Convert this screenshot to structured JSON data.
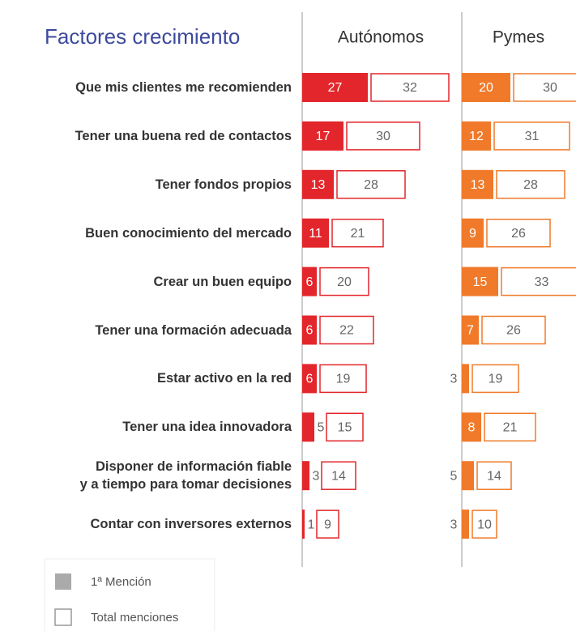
{
  "chart_data": {
    "type": "bar",
    "title": "Factores crecimiento",
    "categories": [
      "Que mis clientes me recomienden",
      "Tener una buena red de contactos",
      "Tener fondos propios",
      "Buen conocimiento del mercado",
      "Crear un buen equipo",
      "Tener una formación adecuada",
      "Estar activo en la red",
      "Tener una idea innovadora",
      "Disponer de información fiable\ny a tiempo para tomar decisiones",
      "Contar con inversores externos"
    ],
    "legend": [
      "1ª Mención",
      "Total menciones"
    ],
    "panels": [
      {
        "name": "Autónomos",
        "color": "#e3262b",
        "small_label": "after",
        "first": [
          27,
          17,
          13,
          11,
          6,
          6,
          6,
          5,
          3,
          1
        ],
        "total": [
          32,
          30,
          28,
          21,
          20,
          22,
          19,
          15,
          14,
          9
        ]
      },
      {
        "name": "Pymes",
        "color": "#f07a2a",
        "small_label": "before",
        "first": [
          20,
          12,
          13,
          9,
          15,
          7,
          3,
          8,
          5,
          3
        ],
        "total": [
          30,
          31,
          28,
          26,
          33,
          26,
          19,
          21,
          14,
          10
        ]
      }
    ]
  }
}
